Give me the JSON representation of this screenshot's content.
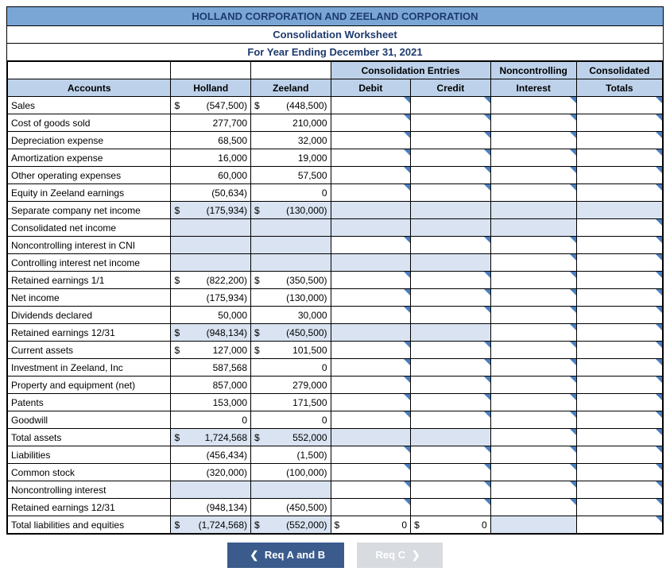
{
  "header": {
    "title": "HOLLAND CORPORATION AND ZEELAND CORPORATION",
    "subtitle1": "Consolidation Worksheet",
    "subtitle2": "For Year Ending December 31, 2021"
  },
  "colhead": {
    "consolidation_entries": "Consolidation Entries",
    "noncontrolling": "Noncontrolling",
    "consolidated": "Consolidated",
    "accounts": "Accounts",
    "holland": "Holland",
    "zeeland": "Zeeland",
    "debit": "Debit",
    "credit": "Credit",
    "interest": "Interest",
    "totals": "Totals"
  },
  "rows": [
    {
      "label": "Sales",
      "h_sym": "$",
      "h_val": "(547,500)",
      "z_sym": "$",
      "z_val": "(448,500)",
      "edit_debit": true,
      "edit_credit": true,
      "edit_nci": true,
      "edit_tot": true,
      "dbl": false
    },
    {
      "label": "Cost of goods sold",
      "h_sym": "",
      "h_val": "277,700",
      "z_sym": "",
      "z_val": "210,000",
      "edit_debit": true,
      "edit_credit": true,
      "edit_nci": true,
      "edit_tot": true,
      "dbl": false
    },
    {
      "label": "Depreciation expense",
      "h_sym": "",
      "h_val": "68,500",
      "z_sym": "",
      "z_val": "32,000",
      "edit_debit": true,
      "edit_credit": true,
      "edit_nci": true,
      "edit_tot": true,
      "dbl": false
    },
    {
      "label": "Amortization expense",
      "h_sym": "",
      "h_val": "16,000",
      "z_sym": "",
      "z_val": "19,000",
      "edit_debit": true,
      "edit_credit": true,
      "edit_nci": true,
      "edit_tot": true,
      "dbl": false
    },
    {
      "label": "Other operating expenses",
      "h_sym": "",
      "h_val": "60,000",
      "z_sym": "",
      "z_val": "57,500",
      "edit_debit": true,
      "edit_credit": true,
      "edit_nci": true,
      "edit_tot": true,
      "dbl": false
    },
    {
      "label": "Equity in Zeeland earnings",
      "h_sym": "",
      "h_val": "(50,634)",
      "z_sym": "",
      "z_val": "0",
      "edit_debit": true,
      "edit_credit": true,
      "edit_nci": true,
      "edit_tot": true,
      "dbl": false
    },
    {
      "label": "Separate company net income",
      "h_sym": "$",
      "h_val": "(175,934)",
      "z_sym": "$",
      "z_val": "(130,000)",
      "edit_debit": false,
      "edit_credit": false,
      "edit_nci": false,
      "edit_tot": false,
      "dbl": true,
      "shaded": true
    },
    {
      "label": "Consolidated net income",
      "h_sym": "",
      "h_val": "",
      "z_sym": "",
      "z_val": "",
      "edit_debit": false,
      "edit_credit": false,
      "edit_nci": false,
      "edit_tot": true,
      "dbl": false,
      "shaded": true
    },
    {
      "label": "Noncontrolling interest in CNI",
      "h_sym": "",
      "h_val": "",
      "z_sym": "",
      "z_val": "",
      "edit_debit": true,
      "edit_credit": true,
      "edit_nci": true,
      "edit_tot": true,
      "dbl": false,
      "shaded": true
    },
    {
      "label": "Controlling interest net income",
      "h_sym": "",
      "h_val": "",
      "z_sym": "",
      "z_val": "",
      "edit_debit": false,
      "edit_credit": false,
      "edit_nci": true,
      "edit_tot": true,
      "dbl": false,
      "shaded": true
    },
    {
      "label": "Retained earnings 1/1",
      "h_sym": "$",
      "h_val": "(822,200)",
      "z_sym": "$",
      "z_val": "(350,500)",
      "edit_debit": true,
      "edit_credit": true,
      "edit_nci": true,
      "edit_tot": true,
      "dbl": false
    },
    {
      "label": "Net income",
      "h_sym": "",
      "h_val": "(175,934)",
      "z_sym": "",
      "z_val": "(130,000)",
      "edit_debit": true,
      "edit_credit": true,
      "edit_nci": true,
      "edit_tot": true,
      "dbl": false
    },
    {
      "label": "Dividends declared",
      "h_sym": "",
      "h_val": "50,000",
      "z_sym": "",
      "z_val": "30,000",
      "edit_debit": true,
      "edit_credit": true,
      "edit_nci": true,
      "edit_tot": true,
      "dbl": false
    },
    {
      "label": "Retained earnings 12/31",
      "h_sym": "$",
      "h_val": "(948,134)",
      "z_sym": "$",
      "z_val": "(450,500)",
      "edit_debit": false,
      "edit_credit": false,
      "edit_nci": true,
      "edit_tot": true,
      "dbl": true,
      "shaded": true
    },
    {
      "label": "Current assets",
      "h_sym": "$",
      "h_val": "127,000",
      "z_sym": "$",
      "z_val": "101,500",
      "edit_debit": true,
      "edit_credit": true,
      "edit_nci": true,
      "edit_tot": true,
      "dbl": false
    },
    {
      "label": "Investment in Zeeland, Inc",
      "h_sym": "",
      "h_val": "587,568",
      "z_sym": "",
      "z_val": "0",
      "edit_debit": true,
      "edit_credit": true,
      "edit_nci": true,
      "edit_tot": true,
      "dbl": false
    },
    {
      "label": "Property and equipment (net)",
      "h_sym": "",
      "h_val": "857,000",
      "z_sym": "",
      "z_val": "279,000",
      "edit_debit": true,
      "edit_credit": true,
      "edit_nci": true,
      "edit_tot": true,
      "dbl": false
    },
    {
      "label": "Patents",
      "h_sym": "",
      "h_val": "153,000",
      "z_sym": "",
      "z_val": "171,500",
      "edit_debit": true,
      "edit_credit": true,
      "edit_nci": true,
      "edit_tot": true,
      "dbl": false
    },
    {
      "label": "Goodwill",
      "h_sym": "",
      "h_val": "0",
      "z_sym": "",
      "z_val": "0",
      "edit_debit": true,
      "edit_credit": true,
      "edit_nci": true,
      "edit_tot": true,
      "dbl": false
    },
    {
      "label": "Total assets",
      "h_sym": "$",
      "h_val": "1,724,568",
      "z_sym": "$",
      "z_val": "552,000",
      "edit_debit": false,
      "edit_credit": false,
      "edit_nci": true,
      "edit_tot": true,
      "dbl": true,
      "shaded": true
    },
    {
      "label": "Liabilities",
      "h_sym": "",
      "h_val": "(456,434)",
      "z_sym": "",
      "z_val": "(1,500)",
      "edit_debit": true,
      "edit_credit": true,
      "edit_nci": true,
      "edit_tot": true,
      "dbl": false
    },
    {
      "label": "Common stock",
      "h_sym": "",
      "h_val": "(320,000)",
      "z_sym": "",
      "z_val": "(100,000)",
      "edit_debit": true,
      "edit_credit": true,
      "edit_nci": true,
      "edit_tot": true,
      "dbl": false
    },
    {
      "label": "Noncontrolling interest",
      "h_sym": "",
      "h_val": "",
      "z_sym": "",
      "z_val": "",
      "edit_debit": true,
      "edit_credit": true,
      "edit_nci": true,
      "edit_tot": true,
      "dbl": false,
      "shaded": true
    },
    {
      "label": "Retained earnings 12/31",
      "h_sym": "",
      "h_val": "(948,134)",
      "z_sym": "",
      "z_val": "(450,500)",
      "edit_debit": true,
      "edit_credit": true,
      "edit_nci": true,
      "edit_tot": true,
      "dbl": false
    },
    {
      "label": "Total liabilities and equities",
      "h_sym": "$",
      "h_val": "(1,724,568)",
      "z_sym": "$",
      "z_val": "(552,000)",
      "d_sym": "$",
      "d_val": "0",
      "c_sym": "$",
      "c_val": "0",
      "edit_debit": false,
      "edit_credit": false,
      "edit_nci": false,
      "edit_tot": true,
      "dbl": true,
      "shaded": true,
      "show_dc": true
    }
  ],
  "buttons": {
    "prev": "Req A and B",
    "next": "Req C"
  },
  "colors": {
    "header_bg": "#7aa6d6",
    "subhead_bg": "#bdd2ea",
    "shaded_bg": "#d9e3f1",
    "border": "#000000",
    "fold": "#4a7fbf",
    "btn_primary": "#3b5b8c",
    "btn_disabled": "#d8dbe0"
  }
}
